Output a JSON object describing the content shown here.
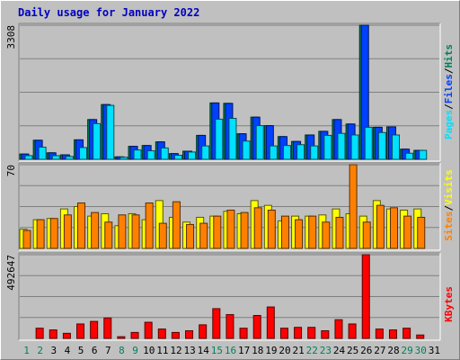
{
  "title": "Daily usage for January 2022",
  "colors": {
    "hits": "#00805c",
    "files": "#0040ff",
    "pages": "#00e0ff",
    "visits": "#ffff00",
    "sites": "#ff8000",
    "kbytes": "#ff0000",
    "weekend_label": "#00805c",
    "weekday_label": "#000000",
    "panel_bg": "#c0c0c0",
    "grid": "#808080"
  },
  "chart_data": [
    {
      "type": "bar",
      "panel": "hits-files-pages",
      "y_max_label": "3308",
      "ylim": [
        0,
        3308
      ],
      "legend": [
        "Pages",
        "/",
        "Files",
        "/",
        "Hits"
      ],
      "categories": [
        "1",
        "2",
        "3",
        "4",
        "5",
        "6",
        "7",
        "8",
        "9",
        "10",
        "11",
        "12",
        "13",
        "14",
        "15",
        "16",
        "17",
        "18",
        "19",
        "20",
        "21",
        "22",
        "23",
        "24",
        "25",
        "26",
        "27",
        "28",
        "29",
        "30",
        "31"
      ],
      "weekend": [
        true,
        true,
        false,
        false,
        false,
        false,
        false,
        true,
        true,
        false,
        false,
        false,
        false,
        false,
        true,
        true,
        false,
        false,
        false,
        false,
        false,
        true,
        true,
        false,
        false,
        false,
        false,
        false,
        true,
        true,
        false
      ],
      "series": [
        {
          "name": "Hits",
          "values": [
            130,
            470,
            160,
            110,
            480,
            980,
            1350,
            60,
            320,
            340,
            430,
            140,
            200,
            590,
            1390,
            1380,
            630,
            1040,
            830,
            560,
            440,
            600,
            690,
            980,
            870,
            3308,
            790,
            800,
            250,
            220,
            0
          ]
        },
        {
          "name": "Files",
          "values": [
            130,
            470,
            160,
            110,
            480,
            980,
            1350,
            60,
            320,
            340,
            430,
            140,
            200,
            590,
            1390,
            1380,
            630,
            1040,
            830,
            560,
            440,
            600,
            690,
            980,
            870,
            3308,
            790,
            800,
            250,
            220,
            0
          ]
        },
        {
          "name": "Pages",
          "values": [
            90,
            300,
            90,
            70,
            290,
            880,
            1330,
            50,
            230,
            210,
            280,
            100,
            180,
            330,
            990,
            1010,
            450,
            830,
            330,
            340,
            360,
            330,
            590,
            640,
            600,
            790,
            660,
            600,
            150,
            220,
            0
          ]
        }
      ]
    },
    {
      "type": "bar",
      "panel": "visits-sites",
      "y_max_label": "70",
      "ylim": [
        0,
        70
      ],
      "legend": [
        "Sites",
        "/",
        "Visits"
      ],
      "categories": [
        "1",
        "2",
        "3",
        "4",
        "5",
        "6",
        "7",
        "8",
        "9",
        "10",
        "11",
        "12",
        "13",
        "14",
        "15",
        "16",
        "17",
        "18",
        "19",
        "20",
        "21",
        "22",
        "23",
        "24",
        "25",
        "26",
        "27",
        "28",
        "29",
        "30",
        "31"
      ],
      "series": [
        {
          "name": "Visits",
          "values": [
            16,
            24,
            25,
            33,
            35,
            27,
            29,
            19,
            29,
            24,
            40,
            26,
            22,
            26,
            27,
            31,
            29,
            40,
            36,
            23,
            27,
            27,
            28,
            33,
            29,
            27,
            40,
            33,
            32,
            33,
            0
          ]
        },
        {
          "name": "Sites",
          "values": [
            15,
            24,
            25,
            28,
            38,
            30,
            22,
            28,
            28,
            38,
            21,
            39,
            20,
            21,
            27,
            32,
            30,
            34,
            32,
            27,
            24,
            27,
            22,
            26,
            70,
            22,
            36,
            34,
            27,
            26,
            0
          ]
        }
      ]
    },
    {
      "type": "bar",
      "panel": "kbytes",
      "y_max_label": "492647",
      "ylim": [
        0,
        492647
      ],
      "legend": [
        "KBytes"
      ],
      "categories": [
        "1",
        "2",
        "3",
        "4",
        "5",
        "6",
        "7",
        "8",
        "9",
        "10",
        "11",
        "12",
        "13",
        "14",
        "15",
        "16",
        "17",
        "18",
        "19",
        "20",
        "21",
        "22",
        "23",
        "24",
        "25",
        "26",
        "27",
        "28",
        "29",
        "30",
        "31"
      ],
      "series": [
        {
          "name": "KBytes",
          "values": [
            0,
            60000,
            50000,
            30000,
            85000,
            100000,
            120000,
            10000,
            35000,
            95000,
            55000,
            35000,
            45000,
            80000,
            175000,
            140000,
            60000,
            135000,
            185000,
            60000,
            65000,
            65000,
            45000,
            110000,
            85000,
            492647,
            55000,
            50000,
            60000,
            20000,
            0
          ]
        }
      ]
    }
  ]
}
